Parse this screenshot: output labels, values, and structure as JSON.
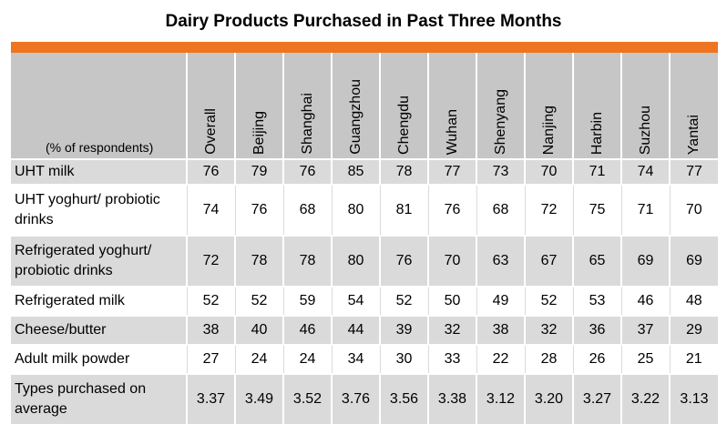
{
  "page": {
    "title": "Dairy Products Purchased in Past Three Months",
    "unit_label": "(% of respondents)"
  },
  "colors": {
    "accent_bar": "#ee7420",
    "header_bg": "#c6c6c6",
    "stripe_bg": "#dadada"
  },
  "chart_data": {
    "type": "table",
    "title": "Dairy Products Purchased in Past Three Months",
    "unit": "(% of respondents)",
    "columns": [
      "Overall",
      "Beijing",
      "Shanghai",
      "Guangzhou",
      "Chengdu",
      "Wuhan",
      "Shenyang",
      "Nanjing",
      "Harbin",
      "Suzhou",
      "Yantai"
    ],
    "rows": [
      {
        "label": "UHT milk",
        "values": [
          "76",
          "79",
          "76",
          "85",
          "78",
          "77",
          "73",
          "70",
          "71",
          "74",
          "77"
        ]
      },
      {
        "label": "UHT yoghurt/ probiotic drinks",
        "values": [
          "74",
          "76",
          "68",
          "80",
          "81",
          "76",
          "68",
          "72",
          "75",
          "71",
          "70"
        ]
      },
      {
        "label": "Refrigerated yoghurt/ probiotic drinks",
        "values": [
          "72",
          "78",
          "78",
          "80",
          "76",
          "70",
          "63",
          "67",
          "65",
          "69",
          "69"
        ]
      },
      {
        "label": "Refrigerated milk",
        "values": [
          "52",
          "52",
          "59",
          "54",
          "52",
          "50",
          "49",
          "52",
          "53",
          "46",
          "48"
        ]
      },
      {
        "label": "Cheese/butter",
        "values": [
          "38",
          "40",
          "46",
          "44",
          "39",
          "32",
          "38",
          "32",
          "36",
          "37",
          "29"
        ]
      },
      {
        "label": "Adult milk powder",
        "values": [
          "27",
          "24",
          "24",
          "34",
          "30",
          "33",
          "22",
          "28",
          "26",
          "25",
          "21"
        ]
      },
      {
        "label": "Types purchased on average",
        "values": [
          "3.37",
          "3.49",
          "3.52",
          "3.76",
          "3.56",
          "3.38",
          "3.12",
          "3.20",
          "3.27",
          "3.22",
          "3.13"
        ]
      }
    ]
  }
}
